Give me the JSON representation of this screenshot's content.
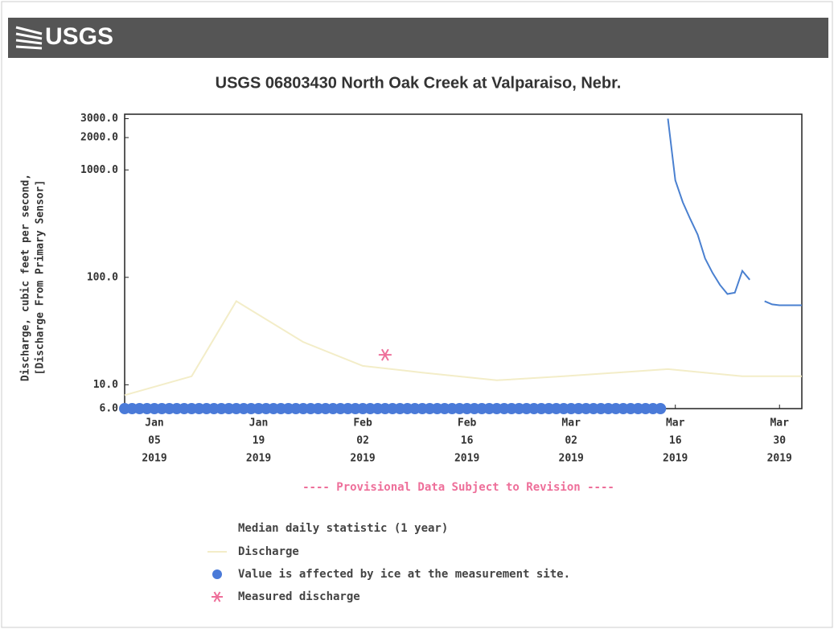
{
  "header": {
    "logo": "USGS"
  },
  "chart_data": {
    "type": "line",
    "log_y": true,
    "title": "USGS 06803430 North Oak Creek at Valparaiso, Nebr.",
    "y_label": [
      "Discharge, cubic feet per second,",
      "[Discharge From Primary Sensor]"
    ],
    "annotation": "---- Provisional Data Subject to Revision ----",
    "legend_title": "Median daily statistic (1 year)",
    "xlim": [
      "2019-01-01",
      "2019-04-02"
    ],
    "xticks": [
      {
        "value": "2019-01-05",
        "label": [
          "Jan",
          "05",
          "2019"
        ]
      },
      {
        "value": "2019-01-19",
        "label": [
          "Jan",
          "19",
          "2019"
        ]
      },
      {
        "value": "2019-02-02",
        "label": [
          "Feb",
          "02",
          "2019"
        ]
      },
      {
        "value": "2019-02-16",
        "label": [
          "Feb",
          "16",
          "2019"
        ]
      },
      {
        "value": "2019-03-02",
        "label": [
          "Mar",
          "02",
          "2019"
        ]
      },
      {
        "value": "2019-03-16",
        "label": [
          "Mar",
          "16",
          "2019"
        ]
      },
      {
        "value": "2019-03-30",
        "label": [
          "Mar",
          "30",
          "2019"
        ]
      }
    ],
    "ylim": [
      6,
      3300
    ],
    "yticks": [
      {
        "value": 3000,
        "label": "3000.0"
      },
      {
        "value": 2000,
        "label": "2000.0"
      },
      {
        "value": 1000,
        "label": "1000.0"
      },
      {
        "value": 100,
        "label": "100.0"
      },
      {
        "value": 10,
        "label": "10.0"
      },
      {
        "value": 6,
        "label": "6.0"
      }
    ],
    "series": [
      {
        "kind": "line",
        "color": "#4a80d0",
        "x": [
          "2019-03-15",
          "2019-03-16",
          "2019-03-17",
          "2019-03-18",
          "2019-03-19",
          "2019-03-20",
          "2019-03-21",
          "2019-03-22",
          "2019-03-23",
          "2019-03-24",
          "2019-03-25",
          "2019-03-26",
          "2019-03-27",
          "2019-03-28",
          "2019-03-29",
          "2019-03-30",
          "2019-03-31",
          "2019-04-01",
          "2019-04-02"
        ],
        "values": [
          3000,
          800,
          500,
          350,
          250,
          150,
          110,
          85,
          70,
          72,
          115,
          95,
          null,
          60,
          56,
          55,
          55,
          55,
          55
        ]
      },
      {
        "kind": "line",
        "name": "Discharge",
        "color": "#f3edc8",
        "x": [
          "2019-01-01",
          "2019-01-10",
          "2019-01-16",
          "2019-01-25",
          "2019-02-02",
          "2019-02-10",
          "2019-02-20",
          "2019-03-01",
          "2019-03-15",
          "2019-03-25",
          "2019-04-02"
        ],
        "values": [
          8,
          12,
          60,
          25,
          15,
          13,
          11,
          12,
          14,
          12,
          12
        ]
      },
      {
        "kind": "dots",
        "name": "Value is affected by ice at the measurement site.",
        "color": "#4a7ad8",
        "x": [
          "2019-01-01",
          "2019-01-02",
          "2019-01-03",
          "2019-01-04",
          "2019-01-05",
          "2019-01-06",
          "2019-01-07",
          "2019-01-08",
          "2019-01-09",
          "2019-01-10",
          "2019-01-11",
          "2019-01-12",
          "2019-01-13",
          "2019-01-14",
          "2019-01-15",
          "2019-01-16",
          "2019-01-17",
          "2019-01-18",
          "2019-01-19",
          "2019-01-20",
          "2019-01-21",
          "2019-01-22",
          "2019-01-23",
          "2019-01-24",
          "2019-01-25",
          "2019-01-26",
          "2019-01-27",
          "2019-01-28",
          "2019-01-29",
          "2019-01-30",
          "2019-01-31",
          "2019-02-01",
          "2019-02-02",
          "2019-02-03",
          "2019-02-04",
          "2019-02-05",
          "2019-02-06",
          "2019-02-07",
          "2019-02-08",
          "2019-02-09",
          "2019-02-10",
          "2019-02-11",
          "2019-02-12",
          "2019-02-13",
          "2019-02-14",
          "2019-02-15",
          "2019-02-16",
          "2019-02-17",
          "2019-02-18",
          "2019-02-19",
          "2019-02-20",
          "2019-02-21",
          "2019-02-22",
          "2019-02-23",
          "2019-02-24",
          "2019-02-25",
          "2019-02-26",
          "2019-02-27",
          "2019-02-28",
          "2019-03-01",
          "2019-03-02",
          "2019-03-03",
          "2019-03-04",
          "2019-03-05",
          "2019-03-06",
          "2019-03-07",
          "2019-03-08",
          "2019-03-09",
          "2019-03-10",
          "2019-03-11",
          "2019-03-12",
          "2019-03-13",
          "2019-03-14"
        ],
        "values": [
          6,
          6,
          6,
          6,
          6,
          6,
          6,
          6,
          6,
          6,
          6,
          6,
          6,
          6,
          6,
          6,
          6,
          6,
          6,
          6,
          6,
          6,
          6,
          6,
          6,
          6,
          6,
          6,
          6,
          6,
          6,
          6,
          6,
          6,
          6,
          6,
          6,
          6,
          6,
          6,
          6,
          6,
          6,
          6,
          6,
          6,
          6,
          6,
          6,
          6,
          6,
          6,
          6,
          6,
          6,
          6,
          6,
          6,
          6,
          6,
          6,
          6,
          6,
          6,
          6,
          6,
          6,
          6,
          6,
          6,
          6,
          6,
          6
        ]
      },
      {
        "kind": "asterisk",
        "name": "Measured discharge",
        "color": "#ee6f9a",
        "x": [
          "2019-02-05"
        ],
        "values": [
          19
        ]
      }
    ]
  }
}
